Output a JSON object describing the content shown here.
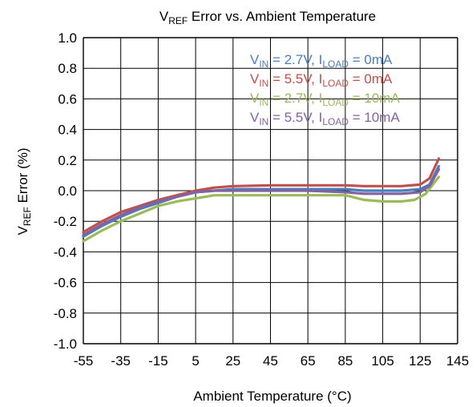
{
  "chart_data": {
    "type": "line",
    "title": {
      "main": "V",
      "sub": "REF",
      "rest": " Error vs. Ambient Temperature"
    },
    "xlabel": "Ambient Temperature (°C)",
    "ylabel": {
      "main": "V",
      "sub": "REF",
      "rest": " Error (%)"
    },
    "xlim": [
      -55,
      145
    ],
    "ylim": [
      -1.0,
      1.0
    ],
    "xticks": [
      "-55",
      "-35",
      "-15",
      "5",
      "25",
      "45",
      "65",
      "85",
      "105",
      "125",
      "145"
    ],
    "yticks": [
      "1.0",
      "0.8",
      "0.6",
      "0.4",
      "0.2",
      "0.0",
      "-0.2",
      "-0.4",
      "-0.6",
      "-0.8",
      "-1.0"
    ],
    "grid": true,
    "legend_position": "top-right",
    "series": [
      {
        "legend": [
          {
            "t": "V",
            "s": false
          },
          {
            "t": "IN",
            "s": true
          },
          {
            "t": " = 2.7V, I",
            "s": false
          },
          {
            "t": "LOAD",
            "s": true
          },
          {
            "t": " = 0mA",
            "s": false
          }
        ],
        "color": "#4a7ebb",
        "x": [
          -55,
          -45,
          -35,
          -25,
          -15,
          -5,
          5,
          15,
          25,
          45,
          65,
          85,
          95,
          105,
          115,
          125,
          130,
          135
        ],
        "y": [
          -0.3,
          -0.23,
          -0.17,
          -0.12,
          -0.08,
          -0.04,
          -0.01,
          0.0,
          0.01,
          0.01,
          0.01,
          0.01,
          0.0,
          0.0,
          0.0,
          0.01,
          0.04,
          0.16
        ]
      },
      {
        "legend": [
          {
            "t": "V",
            "s": false
          },
          {
            "t": "IN",
            "s": true
          },
          {
            "t": " = 5.5V, I",
            "s": false
          },
          {
            "t": "LOAD",
            "s": true
          },
          {
            "t": " = 0mA",
            "s": false
          }
        ],
        "color": "#c0504d",
        "x": [
          -55,
          -45,
          -35,
          -25,
          -15,
          -5,
          5,
          15,
          25,
          45,
          65,
          85,
          95,
          105,
          115,
          125,
          130,
          135
        ],
        "y": [
          -0.27,
          -0.2,
          -0.14,
          -0.1,
          -0.06,
          -0.03,
          0.0,
          0.02,
          0.03,
          0.035,
          0.035,
          0.035,
          0.03,
          0.03,
          0.03,
          0.04,
          0.08,
          0.21
        ]
      },
      {
        "legend": [
          {
            "t": "V",
            "s": false
          },
          {
            "t": "IN",
            "s": true
          },
          {
            "t": " = 2.7V, I",
            "s": false
          },
          {
            "t": "LOAD",
            "s": true
          },
          {
            "t": " = 10mA",
            "s": false
          }
        ],
        "color": "#9bbb59",
        "x": [
          -55,
          -45,
          -35,
          -25,
          -15,
          -5,
          5,
          15,
          25,
          45,
          65,
          85,
          95,
          105,
          115,
          122,
          128,
          135
        ],
        "y": [
          -0.33,
          -0.26,
          -0.2,
          -0.15,
          -0.1,
          -0.07,
          -0.05,
          -0.03,
          -0.03,
          -0.03,
          -0.03,
          -0.03,
          -0.06,
          -0.07,
          -0.07,
          -0.06,
          -0.02,
          0.09
        ]
      },
      {
        "legend": [
          {
            "t": "V",
            "s": false
          },
          {
            "t": "IN",
            "s": true
          },
          {
            "t": " = 5.5V, I",
            "s": false
          },
          {
            "t": "LOAD",
            "s": true
          },
          {
            "t": " = 10mA",
            "s": false
          }
        ],
        "color": "#8064a2",
        "x": [
          -55,
          -45,
          -35,
          -25,
          -15,
          -5,
          5,
          15,
          25,
          45,
          65,
          85,
          95,
          105,
          115,
          125,
          130,
          135
        ],
        "y": [
          -0.29,
          -0.22,
          -0.16,
          -0.11,
          -0.07,
          -0.04,
          -0.01,
          0.0,
          0.0,
          0.0,
          0.0,
          -0.01,
          -0.02,
          -0.02,
          -0.02,
          -0.01,
          0.03,
          0.14
        ]
      }
    ]
  }
}
